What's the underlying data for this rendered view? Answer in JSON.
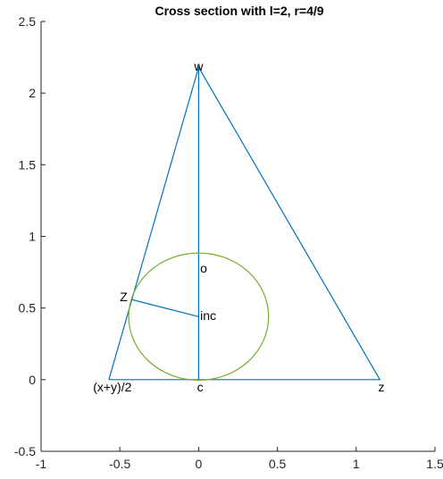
{
  "chart_data": {
    "type": "line",
    "title": "Cross section with l=2, r=4/9",
    "xlim": [
      -1,
      1.5
    ],
    "ylim": [
      -0.5,
      2.5
    ],
    "xticks": [
      -1,
      -0.5,
      0,
      0.5,
      1,
      1.5
    ],
    "xtick_labels": [
      "-1",
      "-0.5",
      "0",
      "0.5",
      "1",
      "1.5"
    ],
    "yticks": [
      -0.5,
      0,
      0.5,
      1,
      1.5,
      2,
      2.5
    ],
    "ytick_labels": [
      "-0.5",
      "0",
      "0.5",
      "1",
      "1.5",
      "2",
      "2.5"
    ],
    "grid": false,
    "colors": {
      "lines": "#0072BD",
      "circle": "#77AC30",
      "axis": "#262626"
    },
    "series": [
      {
        "kind": "polyline",
        "points": [
          [
            -0.57,
            0
          ],
          [
            1.15,
            0
          ],
          [
            0,
            2.18
          ],
          [
            -0.57,
            0
          ]
        ]
      },
      {
        "kind": "polyline",
        "points": [
          [
            0,
            0
          ],
          [
            0,
            2.18
          ]
        ]
      },
      {
        "kind": "polyline",
        "points": [
          [
            -0.43,
            0.56
          ],
          [
            0,
            0.44
          ]
        ]
      },
      {
        "kind": "circle",
        "center": [
          0,
          0.44
        ],
        "radius": 0.444
      }
    ],
    "annotations": [
      {
        "text": "w",
        "x": 0,
        "y": 2.18
      },
      {
        "text": "o",
        "x": 0.01,
        "y": 0.77
      },
      {
        "text": "Z",
        "x": -0.5,
        "y": 0.57
      },
      {
        "text": "inc",
        "x": 0.01,
        "y": 0.44
      },
      {
        "text": "(x+y)/2",
        "x": -0.67,
        "y": -0.06
      },
      {
        "text": "c",
        "x": -0.01,
        "y": -0.06
      },
      {
        "text": "z",
        "x": 1.14,
        "y": -0.06
      }
    ]
  }
}
